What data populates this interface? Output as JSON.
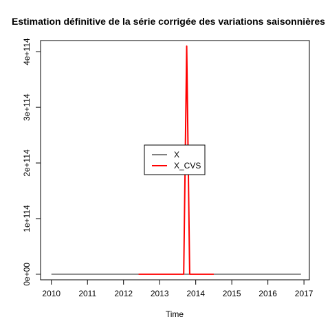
{
  "chart_data": {
    "type": "line",
    "title": "Estimation définitive de la série corrigée des variations saisonnières",
    "xlabel": "Time",
    "ylabel": "",
    "xlim": [
      2009.7,
      2017.15
    ],
    "ylim": [
      -1e+113,
      4.2e+114
    ],
    "x_ticks": [
      2010,
      2011,
      2012,
      2013,
      2014,
      2015,
      2016,
      2017
    ],
    "x_tick_labels": [
      "2010",
      "2011",
      "2012",
      "2013",
      "2014",
      "2015",
      "2016",
      "2017"
    ],
    "y_ticks": [
      0,
      1e+114,
      2e+114,
      3e+114,
      4e+114
    ],
    "y_tick_labels": [
      "0e+00",
      "1e+114",
      "2e+114",
      "3e+114",
      "4e+114"
    ],
    "grid": false,
    "legend": {
      "position": "center",
      "entries": [
        "X",
        "X_CVS"
      ]
    },
    "series": [
      {
        "name": "X",
        "color": "#000000",
        "x": [
          2010.0,
          2016.917
        ],
        "values": [
          0,
          0
        ]
      },
      {
        "name": "X_CVS",
        "color": "#ff0000",
        "x": [
          2012.417,
          2013.667,
          2013.75,
          2013.833,
          2014.5
        ],
        "values": [
          0,
          0,
          4.1e+114,
          0,
          0
        ]
      }
    ]
  }
}
